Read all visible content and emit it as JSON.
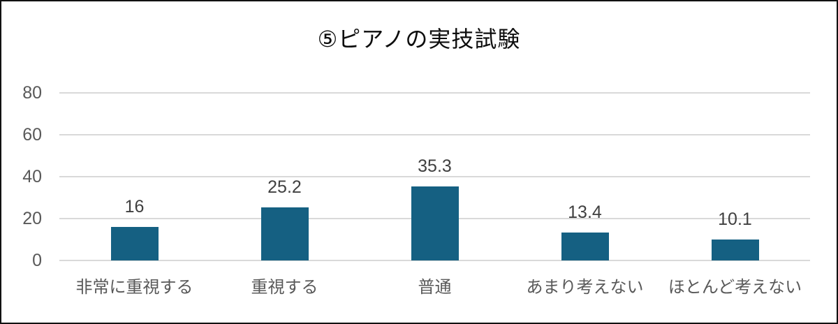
{
  "chart_data": {
    "type": "bar",
    "title": "⑤ピアノの実技試験",
    "categories": [
      "非常に重視する",
      "重視する",
      "普通",
      "あまり考えない",
      "ほとんど考えない"
    ],
    "values": [
      16,
      25.2,
      35.3,
      13.4,
      10.1
    ],
    "data_labels": [
      "16",
      "25.2",
      "35.3",
      "13.4",
      "10.1"
    ],
    "xlabel": "",
    "ylabel": "",
    "ylim": [
      0,
      80
    ],
    "yticks": [
      0,
      20,
      40,
      60,
      80
    ],
    "grid": "horizontal",
    "legend_position": "none"
  },
  "colors": {
    "bar": "#156082",
    "gridline": "#d9d9d9",
    "axis_text": "#595959",
    "value_label_text": "#404040",
    "title_text": "#0d0d0d",
    "frame_border": "#111111",
    "background": "#ffffff"
  }
}
